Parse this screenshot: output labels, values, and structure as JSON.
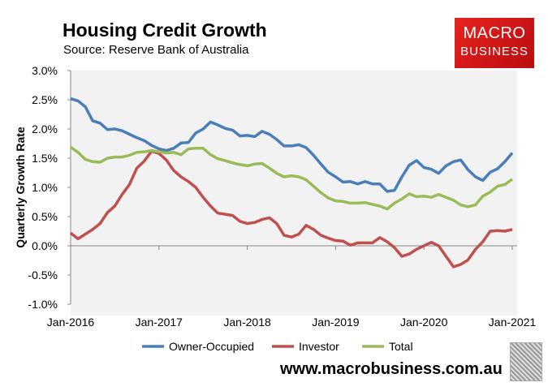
{
  "header": {
    "title": "Housing Credit Growth",
    "source": "Source: Reserve Bank of Australia"
  },
  "logo": {
    "line1": "MACRO",
    "line2": "BUSINESS"
  },
  "footer": {
    "url": "www.macrobusiness.com.au"
  },
  "chart_data": {
    "type": "line",
    "title": "Housing Credit Growth",
    "xlabel": "",
    "ylabel": "Quarterly Growth Rate",
    "ylim": [
      -1.0,
      3.0
    ],
    "yticks": [
      "-1.0%",
      "-0.5%",
      "0.0%",
      "0.5%",
      "1.0%",
      "1.5%",
      "2.0%",
      "2.5%",
      "3.0%"
    ],
    "ytick_values": [
      -1.0,
      -0.5,
      0,
      0.5,
      1.0,
      1.5,
      2.0,
      2.5,
      3.0
    ],
    "xticks": [
      "Jan-2016",
      "Jan-2017",
      "Jan-2018",
      "Jan-2019",
      "Jan-2020",
      "Jan-2021"
    ],
    "x_start": "Jan-2016",
    "x_end": "Jan-2021",
    "frequency": "monthly",
    "legend_position": "bottom",
    "series": [
      {
        "name": "Owner-Occupied",
        "color": "#4a7ebb",
        "values": [
          2.52,
          2.48,
          2.38,
          2.14,
          2.1,
          1.99,
          2.0,
          1.97,
          1.91,
          1.85,
          1.8,
          1.72,
          1.66,
          1.63,
          1.67,
          1.76,
          1.77,
          1.93,
          2.0,
          2.12,
          2.07,
          2.01,
          1.98,
          1.88,
          1.89,
          1.87,
          1.96,
          1.91,
          1.82,
          1.71,
          1.71,
          1.73,
          1.68,
          1.55,
          1.4,
          1.26,
          1.18,
          1.09,
          1.1,
          1.06,
          1.1,
          1.06,
          1.06,
          0.93,
          0.95,
          1.18,
          1.38,
          1.46,
          1.34,
          1.31,
          1.24,
          1.37,
          1.44,
          1.47,
          1.3,
          1.18,
          1.12,
          1.26,
          1.32,
          1.44,
          1.59
        ]
      },
      {
        "name": "Investor",
        "color": "#c0504d",
        "values": [
          0.22,
          0.12,
          0.2,
          0.28,
          0.38,
          0.57,
          0.68,
          0.88,
          1.05,
          1.33,
          1.45,
          1.62,
          1.58,
          1.47,
          1.29,
          1.18,
          1.1,
          1.0,
          0.83,
          0.68,
          0.56,
          0.54,
          0.52,
          0.42,
          0.38,
          0.4,
          0.45,
          0.48,
          0.38,
          0.18,
          0.15,
          0.2,
          0.35,
          0.28,
          0.18,
          0.13,
          0.09,
          0.08,
          0.01,
          0.05,
          0.05,
          0.05,
          0.14,
          0.07,
          -0.03,
          -0.18,
          -0.14,
          -0.06,
          0.0,
          0.06,
          0.0,
          -0.18,
          -0.36,
          -0.32,
          -0.24,
          -0.06,
          0.07,
          0.25,
          0.26,
          0.25,
          0.28
        ]
      },
      {
        "name": "Total",
        "color": "#9bbb59",
        "values": [
          1.69,
          1.6,
          1.48,
          1.44,
          1.43,
          1.5,
          1.52,
          1.52,
          1.55,
          1.6,
          1.61,
          1.63,
          1.61,
          1.59,
          1.6,
          1.56,
          1.66,
          1.67,
          1.67,
          1.56,
          1.49,
          1.46,
          1.42,
          1.39,
          1.37,
          1.4,
          1.41,
          1.33,
          1.24,
          1.18,
          1.2,
          1.18,
          1.13,
          1.02,
          0.91,
          0.82,
          0.77,
          0.76,
          0.73,
          0.73,
          0.74,
          0.71,
          0.68,
          0.63,
          0.73,
          0.8,
          0.89,
          0.84,
          0.85,
          0.83,
          0.88,
          0.83,
          0.78,
          0.7,
          0.67,
          0.7,
          0.85,
          0.92,
          1.02,
          1.05,
          1.14
        ]
      }
    ]
  }
}
